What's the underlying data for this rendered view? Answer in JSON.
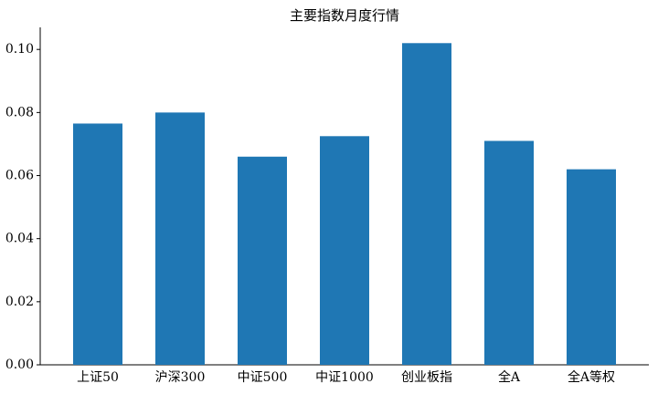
{
  "chart_data": {
    "type": "bar",
    "title": "主要指数月度行情",
    "categories": [
      "上证50",
      "沪深300",
      "中证500",
      "中证1000",
      "创业板指",
      "全A",
      "全A等权"
    ],
    "values": [
      0.0765,
      0.08,
      0.066,
      0.0725,
      0.102,
      0.071,
      0.062
    ],
    "color": "#1f77b4",
    "ylim": [
      0,
      0.107
    ],
    "yticks": [
      {
        "value": 0,
        "label": "0.00"
      },
      {
        "value": 0.02,
        "label": "0.02"
      },
      {
        "value": 0.04,
        "label": "0.04"
      },
      {
        "value": 0.06,
        "label": "0.06"
      },
      {
        "value": 0.08,
        "label": "0.08"
      },
      {
        "value": 0.1,
        "label": "0.10"
      }
    ],
    "grid": false
  }
}
